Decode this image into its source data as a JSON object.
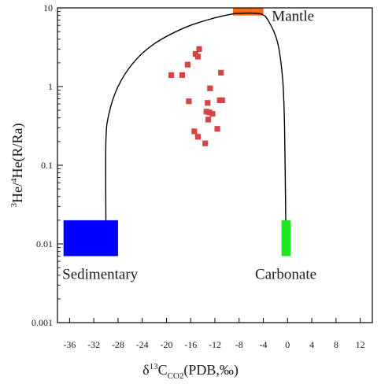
{
  "chart_data": {
    "type": "scatter",
    "title": "",
    "xlabel": {
      "prefix": "δ",
      "sup": "13",
      "main": "C",
      "sub": "CO2",
      "suffix": "(PDB,‰)"
    },
    "ylabel": {
      "sup1": "3",
      "part1": "He/",
      "sup2": "4",
      "part2": "He(R/Ra)"
    },
    "x_scale": "linear",
    "y_scale": "log",
    "xlim": [
      -38,
      14
    ],
    "ylim": [
      0.001,
      10
    ],
    "xticks": [
      -36,
      -32,
      -28,
      -24,
      -20,
      -16,
      -12,
      -8,
      -4,
      0,
      4,
      8,
      12
    ],
    "xtick_labels": [
      "-36",
      "-32",
      "-28",
      "-24",
      "-20",
      "-16",
      "-12",
      "-8",
      "-4",
      "0",
      "4",
      "8",
      "12"
    ],
    "yticks": [
      0.001,
      0.01,
      0.1,
      1,
      10
    ],
    "ytick_labels": [
      "0.001",
      "0.01",
      "0.1",
      "1",
      "10"
    ],
    "grid": false,
    "legend": "none",
    "regions": [
      {
        "label": "Mantle",
        "x_range": [
          -9,
          -4
        ],
        "y_range": [
          8,
          10
        ],
        "color": "#ff6a13"
      },
      {
        "label": "Sedimentary",
        "x_range": [
          -37,
          -28
        ],
        "y_range": [
          0.007,
          0.02
        ],
        "color": "#0000ff"
      },
      {
        "label": "Carbonate",
        "x_range": [
          -1,
          0.5
        ],
        "y_range": [
          0.007,
          0.02
        ],
        "color": "#22e622"
      }
    ],
    "mixing_curve": {
      "color": "#000000",
      "points": [
        [
          -30,
          0.02
        ],
        [
          -30,
          0.2
        ],
        [
          -29.5,
          0.45
        ],
        [
          -28,
          1.0
        ],
        [
          -25.5,
          2.0
        ],
        [
          -22,
          3.5
        ],
        [
          -17,
          5.6
        ],
        [
          -12.5,
          7.3
        ],
        [
          -9,
          8.4
        ],
        [
          -8.5,
          8.5
        ],
        [
          -4.5,
          8.4
        ],
        [
          -3,
          6.5
        ],
        [
          -1.6,
          3.5
        ],
        [
          -0.8,
          1.2
        ],
        [
          -0.5,
          0.3
        ],
        [
          -0.3,
          0.02
        ]
      ]
    },
    "series": [
      {
        "marker": "square",
        "color": "#d64545",
        "points": [
          [
            -19.2,
            1.4
          ],
          [
            -17.4,
            1.4
          ],
          [
            -16.5,
            1.9
          ],
          [
            -15.2,
            2.6
          ],
          [
            -14.8,
            2.4
          ],
          [
            -14.6,
            3.0
          ],
          [
            -11.0,
            1.5
          ],
          [
            -12.8,
            0.95
          ],
          [
            -13.2,
            0.62
          ],
          [
            -16.3,
            0.65
          ],
          [
            -11.2,
            0.67
          ],
          [
            -10.8,
            0.67
          ],
          [
            -13.4,
            0.48
          ],
          [
            -12.9,
            0.47
          ],
          [
            -12.4,
            0.45
          ],
          [
            -13.1,
            0.38
          ],
          [
            -15.4,
            0.27
          ],
          [
            -11.6,
            0.29
          ],
          [
            -14.8,
            0.23
          ],
          [
            -13.6,
            0.19
          ]
        ]
      }
    ]
  }
}
